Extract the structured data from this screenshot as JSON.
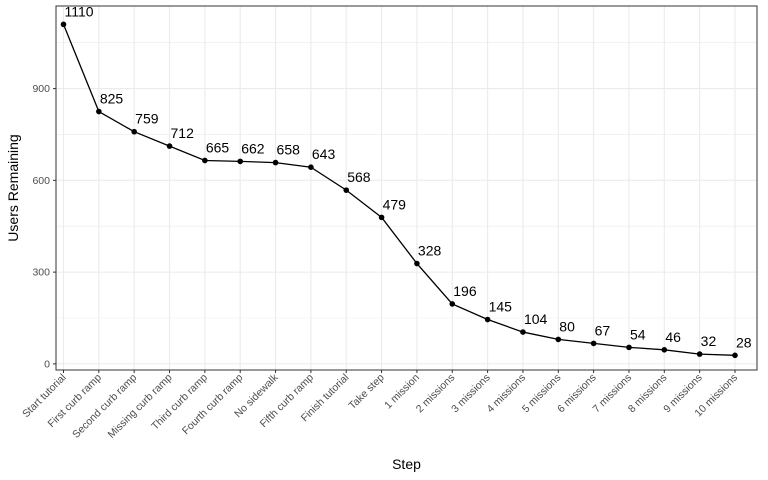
{
  "chart_data": {
    "type": "line",
    "xlabel": "Step",
    "ylabel": "Users Remaining",
    "categories": [
      "Start tutorial",
      "First curb ramp",
      "Second curb ramp",
      "Missing curb ramp",
      "Third curb ramp",
      "Fourth curb ramp",
      "No sidewalk",
      "Fifth curb ramp",
      "Finish tutorial",
      "Take step",
      "1 mission",
      "2 missions",
      "3 missions",
      "4 missions",
      "5 missions",
      "6 missions",
      "7 missions",
      "8 missions",
      "9 missions",
      "10 missions"
    ],
    "values": [
      1110,
      825,
      759,
      712,
      665,
      662,
      658,
      643,
      568,
      479,
      328,
      196,
      145,
      104,
      80,
      67,
      54,
      46,
      32,
      28
    ],
    "ylim": [
      -20,
      1170
    ],
    "yticks": [
      0,
      300,
      600,
      900
    ],
    "grid": true,
    "legend": "none",
    "colors": {
      "line": "#000000",
      "grid": "#ebebeb",
      "panel_border": "#333333",
      "tick_text": "#4d4d4d"
    }
  }
}
